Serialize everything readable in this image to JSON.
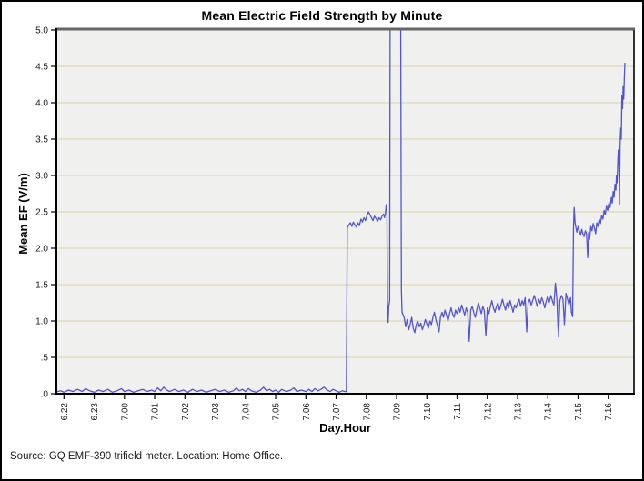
{
  "window": {
    "background": "#ffffff",
    "border_color": "#000000"
  },
  "chart": {
    "title": "Mean Electric Field Strength by Minute",
    "xlabel": "Day.Hour",
    "ylabel": "Mean EF (V/m)"
  },
  "footer": {
    "source_text": "Source: GQ EMF-390 trifield meter. Location: Home Office."
  },
  "chart_data": {
    "type": "line",
    "title": "Mean Electric Field Strength by Minute",
    "xlabel": "Day.Hour",
    "ylabel": "Mean EF (V/m)",
    "ylim": [
      0,
      5
    ],
    "grid": true,
    "legend": false,
    "x_tick_labels": [
      "6.22",
      "6.23",
      "7.00",
      "7.01",
      "7.02",
      "7.03",
      "7.04",
      "7.05",
      "7.06",
      "7.07",
      "7.08",
      "7.09",
      "7.10",
      "7.11",
      "7.12",
      "7.13",
      "7.14",
      "7.15",
      "7.16"
    ],
    "y_tick_labels": [
      "5.0",
      "4.5",
      "4.0",
      "3.5",
      "3.0",
      "2.5",
      "2.0",
      "1.5",
      "1.0",
      ".5",
      ".0"
    ],
    "y_tick_values": [
      5.0,
      4.5,
      4.0,
      3.5,
      3.0,
      2.5,
      2.0,
      1.5,
      1.0,
      0.5,
      0.0
    ],
    "x_unit": "hour ticks: 0 = 6.22, one unit per hour, fraction = minutes/60",
    "x_view_range": [
      -0.25,
      18.85
    ],
    "clipped_spike": "between x=10.79 and x=11.13 the series exceeds the 5.0 axis maximum (drawn clipped)",
    "colors": {
      "line": "#5353d1",
      "plot_bg": "#f0f0ee",
      "grid": "#ded8b6",
      "axis": "#000000",
      "plot_top_border": "#666666",
      "plot_right_border": "#333333",
      "tick_text": "#1a1a1a"
    },
    "series": [
      {
        "name": "Mean EF",
        "points": [
          [
            -0.22,
            0.03
          ],
          [
            -0.1,
            0.04
          ],
          [
            0.0,
            0.02
          ],
          [
            0.15,
            0.05
          ],
          [
            0.3,
            0.03
          ],
          [
            0.45,
            0.06
          ],
          [
            0.6,
            0.03
          ],
          [
            0.72,
            0.07
          ],
          [
            0.85,
            0.04
          ],
          [
            1.0,
            0.02
          ],
          [
            1.15,
            0.05
          ],
          [
            1.3,
            0.03
          ],
          [
            1.45,
            0.06
          ],
          [
            1.6,
            0.02
          ],
          [
            1.75,
            0.04
          ],
          [
            1.9,
            0.07
          ],
          [
            2.0,
            0.03
          ],
          [
            2.15,
            0.05
          ],
          [
            2.3,
            0.02
          ],
          [
            2.45,
            0.04
          ],
          [
            2.6,
            0.06
          ],
          [
            2.75,
            0.03
          ],
          [
            2.9,
            0.05
          ],
          [
            3.0,
            0.03
          ],
          [
            3.1,
            0.08
          ],
          [
            3.2,
            0.04
          ],
          [
            3.3,
            0.09
          ],
          [
            3.4,
            0.05
          ],
          [
            3.5,
            0.03
          ],
          [
            3.65,
            0.06
          ],
          [
            3.8,
            0.03
          ],
          [
            3.95,
            0.05
          ],
          [
            4.1,
            0.02
          ],
          [
            4.25,
            0.06
          ],
          [
            4.4,
            0.03
          ],
          [
            4.55,
            0.05
          ],
          [
            4.7,
            0.02
          ],
          [
            4.85,
            0.04
          ],
          [
            5.0,
            0.06
          ],
          [
            5.15,
            0.03
          ],
          [
            5.3,
            0.05
          ],
          [
            5.45,
            0.02
          ],
          [
            5.6,
            0.04
          ],
          [
            5.7,
            0.08
          ],
          [
            5.8,
            0.04
          ],
          [
            5.9,
            0.06
          ],
          [
            6.0,
            0.03
          ],
          [
            6.1,
            0.07
          ],
          [
            6.2,
            0.04
          ],
          [
            6.35,
            0.02
          ],
          [
            6.5,
            0.05
          ],
          [
            6.6,
            0.09
          ],
          [
            6.7,
            0.04
          ],
          [
            6.8,
            0.06
          ],
          [
            6.9,
            0.03
          ],
          [
            7.0,
            0.05
          ],
          [
            7.1,
            0.02
          ],
          [
            7.2,
            0.06
          ],
          [
            7.35,
            0.03
          ],
          [
            7.5,
            0.05
          ],
          [
            7.6,
            0.08
          ],
          [
            7.7,
            0.03
          ],
          [
            7.85,
            0.05
          ],
          [
            8.0,
            0.03
          ],
          [
            8.1,
            0.06
          ],
          [
            8.2,
            0.03
          ],
          [
            8.3,
            0.07
          ],
          [
            8.4,
            0.04
          ],
          [
            8.5,
            0.06
          ],
          [
            8.6,
            0.09
          ],
          [
            8.7,
            0.05
          ],
          [
            8.8,
            0.03
          ],
          [
            8.9,
            0.06
          ],
          [
            9.0,
            0.04
          ],
          [
            9.1,
            0.02
          ],
          [
            9.2,
            0.04
          ],
          [
            9.3,
            0.03
          ],
          [
            9.34,
            0.03
          ],
          [
            9.37,
            2.28
          ],
          [
            9.42,
            2.32
          ],
          [
            9.47,
            2.35
          ],
          [
            9.52,
            2.3
          ],
          [
            9.57,
            2.36
          ],
          [
            9.62,
            2.32
          ],
          [
            9.67,
            2.29
          ],
          [
            9.72,
            2.35
          ],
          [
            9.77,
            2.31
          ],
          [
            9.82,
            2.4
          ],
          [
            9.87,
            2.36
          ],
          [
            9.92,
            2.42
          ],
          [
            9.97,
            2.38
          ],
          [
            10.02,
            2.45
          ],
          [
            10.07,
            2.5
          ],
          [
            10.12,
            2.46
          ],
          [
            10.17,
            2.42
          ],
          [
            10.22,
            2.38
          ],
          [
            10.27,
            2.44
          ],
          [
            10.32,
            2.41
          ],
          [
            10.37,
            2.37
          ],
          [
            10.42,
            2.42
          ],
          [
            10.47,
            2.39
          ],
          [
            10.52,
            2.44
          ],
          [
            10.57,
            2.47
          ],
          [
            10.6,
            2.42
          ],
          [
            10.63,
            2.48
          ],
          [
            10.66,
            2.6
          ],
          [
            10.68,
            2.52
          ],
          [
            10.7,
            1.25
          ],
          [
            10.72,
            0.98
          ],
          [
            10.74,
            1.2
          ],
          [
            10.77,
            1.28
          ],
          [
            10.79,
            6.3
          ],
          [
            11.13,
            6.3
          ],
          [
            11.16,
            1.42
          ],
          [
            11.18,
            1.12
          ],
          [
            11.25,
            1.05
          ],
          [
            11.3,
            0.92
          ],
          [
            11.35,
            1.02
          ],
          [
            11.4,
            0.88
          ],
          [
            11.45,
            0.96
          ],
          [
            11.5,
            1.05
          ],
          [
            11.55,
            0.9
          ],
          [
            11.6,
            0.84
          ],
          [
            11.65,
            0.95
          ],
          [
            11.7,
            1.0
          ],
          [
            11.75,
            0.92
          ],
          [
            11.8,
            0.97
          ],
          [
            11.85,
            0.88
          ],
          [
            11.9,
            0.94
          ],
          [
            11.95,
            1.02
          ],
          [
            12.0,
            0.96
          ],
          [
            12.05,
            0.9
          ],
          [
            12.1,
            1.0
          ],
          [
            12.15,
            0.95
          ],
          [
            12.2,
            1.05
          ],
          [
            12.25,
            1.12
          ],
          [
            12.3,
            1.02
          ],
          [
            12.35,
            0.94
          ],
          [
            12.4,
            0.85
          ],
          [
            12.45,
            1.05
          ],
          [
            12.5,
            1.12
          ],
          [
            12.55,
            1.05
          ],
          [
            12.6,
            1.15
          ],
          [
            12.65,
            1.08
          ],
          [
            12.7,
            1.0
          ],
          [
            12.75,
            1.1
          ],
          [
            12.8,
            1.18
          ],
          [
            12.85,
            1.1
          ],
          [
            12.9,
            1.05
          ],
          [
            12.95,
            1.15
          ],
          [
            13.0,
            1.1
          ],
          [
            13.05,
            1.18
          ],
          [
            13.1,
            1.12
          ],
          [
            13.15,
            1.22
          ],
          [
            13.2,
            1.15
          ],
          [
            13.25,
            1.08
          ],
          [
            13.3,
            1.18
          ],
          [
            13.35,
            1.12
          ],
          [
            13.4,
            0.72
          ],
          [
            13.45,
            1.15
          ],
          [
            13.5,
            1.2
          ],
          [
            13.55,
            1.12
          ],
          [
            13.6,
            1.05
          ],
          [
            13.65,
            1.15
          ],
          [
            13.7,
            1.25
          ],
          [
            13.75,
            1.18
          ],
          [
            13.8,
            1.1
          ],
          [
            13.85,
            1.2
          ],
          [
            13.9,
            1.14
          ],
          [
            13.95,
            0.8
          ],
          [
            14.0,
            1.18
          ],
          [
            14.05,
            1.1
          ],
          [
            14.1,
            1.2
          ],
          [
            14.15,
            1.28
          ],
          [
            14.2,
            1.18
          ],
          [
            14.25,
            1.12
          ],
          [
            14.3,
            1.2
          ],
          [
            14.35,
            1.25
          ],
          [
            14.4,
            1.15
          ],
          [
            14.45,
            1.22
          ],
          [
            14.5,
            1.3
          ],
          [
            14.55,
            1.22
          ],
          [
            14.6,
            1.15
          ],
          [
            14.65,
            1.25
          ],
          [
            14.7,
            1.18
          ],
          [
            14.75,
            1.28
          ],
          [
            14.8,
            1.2
          ],
          [
            14.85,
            1.12
          ],
          [
            14.9,
            1.22
          ],
          [
            14.95,
            1.18
          ],
          [
            15.0,
            1.25
          ],
          [
            15.05,
            1.3
          ],
          [
            15.1,
            1.2
          ],
          [
            15.15,
            1.28
          ],
          [
            15.2,
            1.22
          ],
          [
            15.25,
            1.32
          ],
          [
            15.3,
            0.85
          ],
          [
            15.35,
            1.25
          ],
          [
            15.4,
            1.3
          ],
          [
            15.45,
            1.22
          ],
          [
            15.5,
            1.28
          ],
          [
            15.55,
            1.35
          ],
          [
            15.6,
            1.28
          ],
          [
            15.65,
            1.2
          ],
          [
            15.7,
            1.3
          ],
          [
            15.75,
            1.24
          ],
          [
            15.8,
            1.32
          ],
          [
            15.85,
            1.26
          ],
          [
            15.9,
            1.18
          ],
          [
            15.95,
            1.28
          ],
          [
            16.0,
            1.34
          ],
          [
            16.05,
            1.26
          ],
          [
            16.1,
            1.35
          ],
          [
            16.15,
            1.28
          ],
          [
            16.2,
            1.22
          ],
          [
            16.25,
            1.52
          ],
          [
            16.3,
            1.3
          ],
          [
            16.35,
            0.78
          ],
          [
            16.4,
            1.28
          ],
          [
            16.45,
            1.35
          ],
          [
            16.5,
            1.3
          ],
          [
            16.55,
            0.95
          ],
          [
            16.6,
            1.38
          ],
          [
            16.65,
            1.3
          ],
          [
            16.7,
            1.22
          ],
          [
            16.75,
            1.32
          ],
          [
            16.78,
            1.12
          ],
          [
            16.82,
            1.06
          ],
          [
            16.85,
            2.3
          ],
          [
            16.87,
            2.56
          ],
          [
            16.9,
            2.35
          ],
          [
            16.93,
            2.28
          ],
          [
            16.96,
            2.22
          ],
          [
            17.0,
            2.3
          ],
          [
            17.04,
            2.24
          ],
          [
            17.08,
            2.18
          ],
          [
            17.12,
            2.26
          ],
          [
            17.16,
            2.2
          ],
          [
            17.2,
            2.16
          ],
          [
            17.24,
            2.24
          ],
          [
            17.28,
            2.2
          ],
          [
            17.32,
            1.87
          ],
          [
            17.35,
            2.22
          ],
          [
            17.38,
            2.12
          ],
          [
            17.42,
            2.3
          ],
          [
            17.46,
            2.24
          ],
          [
            17.5,
            2.34
          ],
          [
            17.54,
            2.28
          ],
          [
            17.58,
            2.2
          ],
          [
            17.62,
            2.35
          ],
          [
            17.66,
            2.3
          ],
          [
            17.7,
            2.4
          ],
          [
            17.74,
            2.34
          ],
          [
            17.78,
            2.45
          ],
          [
            17.82,
            2.4
          ],
          [
            17.86,
            2.52
          ],
          [
            17.9,
            2.46
          ],
          [
            17.94,
            2.58
          ],
          [
            17.98,
            2.52
          ],
          [
            18.02,
            2.62
          ],
          [
            18.06,
            2.56
          ],
          [
            18.1,
            2.7
          ],
          [
            18.13,
            2.62
          ],
          [
            18.16,
            2.78
          ],
          [
            18.19,
            2.7
          ],
          [
            18.22,
            2.88
          ],
          [
            18.25,
            2.8
          ],
          [
            18.27,
            3.0
          ],
          [
            18.29,
            2.9
          ],
          [
            18.31,
            3.12
          ],
          [
            18.33,
            3.35
          ],
          [
            18.35,
            3.2
          ],
          [
            18.37,
            2.6
          ],
          [
            18.39,
            3.42
          ],
          [
            18.41,
            3.65
          ],
          [
            18.43,
            3.5
          ],
          [
            18.45,
            4.1
          ],
          [
            18.47,
            3.92
          ],
          [
            18.49,
            4.22
          ],
          [
            18.51,
            4.05
          ],
          [
            18.53,
            4.35
          ],
          [
            18.55,
            4.55
          ]
        ]
      }
    ]
  }
}
